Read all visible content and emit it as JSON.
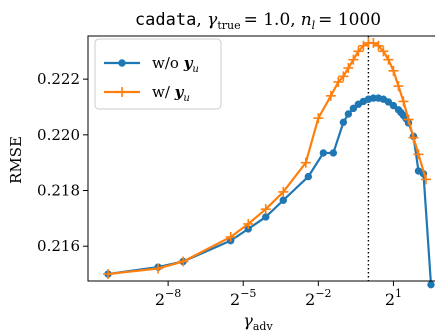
{
  "chart_data": {
    "type": "line",
    "title": {
      "dataset": "cadata",
      "gamma_symbol": "γ",
      "gamma_sub": "true",
      "gamma_value": "= 1.0,",
      "nl_symbol": "n",
      "nl_sub": "l",
      "nl_value": "= 1000"
    },
    "xlabel": {
      "symbol": "γ",
      "sub": "adv"
    },
    "ylabel": "RMSE",
    "x_scale": "log2",
    "xlim_log2": [
      -11.2,
      2.7
    ],
    "ylim": [
      0.21475,
      0.22355
    ],
    "x_ticks": [
      {
        "exp": -8,
        "base": "2",
        "sup": "−8"
      },
      {
        "exp": -5,
        "base": "2",
        "sup": "−5"
      },
      {
        "exp": -2,
        "base": "2",
        "sup": "−2"
      },
      {
        "exp": 1,
        "base": "2",
        "sup": "1"
      }
    ],
    "y_ticks": [
      {
        "value": 0.216,
        "label": "0.216"
      },
      {
        "value": 0.218,
        "label": "0.218"
      },
      {
        "value": 0.22,
        "label": "0.220"
      },
      {
        "value": 0.222,
        "label": "0.222"
      }
    ],
    "vline_log2": 0.0,
    "grid": false,
    "legend_position": "top-left",
    "series": [
      {
        "name": "w/o ",
        "name_bold": "y",
        "name_sub": "u",
        "color": "#1f77b4",
        "marker": "circle",
        "x_log2": [
          -10.4,
          -8.4,
          -7.4,
          -5.5,
          -4.8,
          -4.1,
          -3.4,
          -2.4,
          -1.8,
          -1.4,
          -1.0,
          -0.8,
          -0.6,
          -0.4,
          -0.2,
          0.0,
          0.2,
          0.4,
          0.6,
          0.8,
          1.0,
          1.2,
          1.3,
          1.4,
          1.5,
          1.6,
          1.8,
          2.0,
          2.2,
          2.5
        ],
        "y": [
          0.215,
          0.21525,
          0.21545,
          0.2162,
          0.21662,
          0.21705,
          0.21765,
          0.2185,
          0.21935,
          0.21935,
          0.22045,
          0.22075,
          0.22095,
          0.2211,
          0.2212,
          0.22128,
          0.22132,
          0.22132,
          0.22128,
          0.22118,
          0.22105,
          0.2209,
          0.2208,
          0.2207,
          0.22058,
          0.22043,
          0.21995,
          0.2187,
          0.2186,
          0.21462
        ]
      },
      {
        "name": "w/ ",
        "name_bold": "y",
        "name_sub": "u",
        "color": "#ff7f0e",
        "marker": "plus",
        "x_log2": [
          -10.4,
          -8.4,
          -7.4,
          -5.5,
          -4.8,
          -4.1,
          -3.4,
          -2.5,
          -2.0,
          -1.5,
          -1.2,
          -1.0,
          -0.8,
          -0.6,
          -0.4,
          -0.2,
          0.0,
          0.2,
          0.4,
          0.6,
          0.8,
          1.0,
          1.2,
          1.4,
          1.6,
          1.8,
          2.0,
          2.3
        ],
        "y": [
          0.215,
          0.2152,
          0.21545,
          0.21633,
          0.2168,
          0.21733,
          0.21795,
          0.219,
          0.2206,
          0.2214,
          0.2219,
          0.2221,
          0.2224,
          0.2227,
          0.223,
          0.2232,
          0.2233,
          0.2233,
          0.2232,
          0.223,
          0.2227,
          0.2223,
          0.22175,
          0.2212,
          0.22055,
          0.2199,
          0.2193,
          0.2184
        ]
      }
    ]
  }
}
